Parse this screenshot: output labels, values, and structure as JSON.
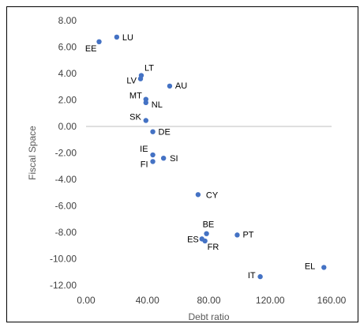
{
  "chart_data": {
    "type": "scatter",
    "title": "",
    "xlabel": "Debt ratio",
    "ylabel": "Fiscal Space",
    "xlim": [
      0,
      160
    ],
    "ylim": [
      -12,
      8
    ],
    "x_ticks": [
      "0.00",
      "40.00",
      "80.00",
      "120.00",
      "160.00"
    ],
    "y_ticks": [
      "8.00",
      "6.00",
      "4.00",
      "2.00",
      "0.00",
      "-2.00",
      "-4.00",
      "-6.00",
      "-8.00",
      "-10.00",
      "-12.00"
    ],
    "grid": false,
    "zero_line": true,
    "marker_color": "#4472C4",
    "points": [
      {
        "label": "EE",
        "x": 8.5,
        "y": 6.4
      },
      {
        "label": "LU",
        "x": 20.0,
        "y": 6.75
      },
      {
        "label": "LT",
        "x": 36.0,
        "y": 3.85
      },
      {
        "label": "LV",
        "x": 35.5,
        "y": 3.6
      },
      {
        "label": "AU",
        "x": 54.5,
        "y": 3.05
      },
      {
        "label": "MT",
        "x": 39.0,
        "y": 2.05
      },
      {
        "label": "NL",
        "x": 39.0,
        "y": 1.8
      },
      {
        "label": "SK",
        "x": 39.0,
        "y": 0.45
      },
      {
        "label": "DE",
        "x": 43.5,
        "y": -0.4
      },
      {
        "label": "IE",
        "x": 43.5,
        "y": -2.15
      },
      {
        "label": "SI",
        "x": 50.5,
        "y": -2.4
      },
      {
        "label": "FI",
        "x": 43.5,
        "y": -2.65
      },
      {
        "label": "CY",
        "x": 73.0,
        "y": -5.15
      },
      {
        "label": "BE",
        "x": 78.5,
        "y": -8.1
      },
      {
        "label": "PT",
        "x": 98.5,
        "y": -8.2
      },
      {
        "label": "ES",
        "x": 75.5,
        "y": -8.5
      },
      {
        "label": "FR",
        "x": 77.5,
        "y": -8.65
      },
      {
        "label": "IT",
        "x": 113.5,
        "y": -11.35
      },
      {
        "label": "EL",
        "x": 155.0,
        "y": -10.65
      }
    ]
  }
}
